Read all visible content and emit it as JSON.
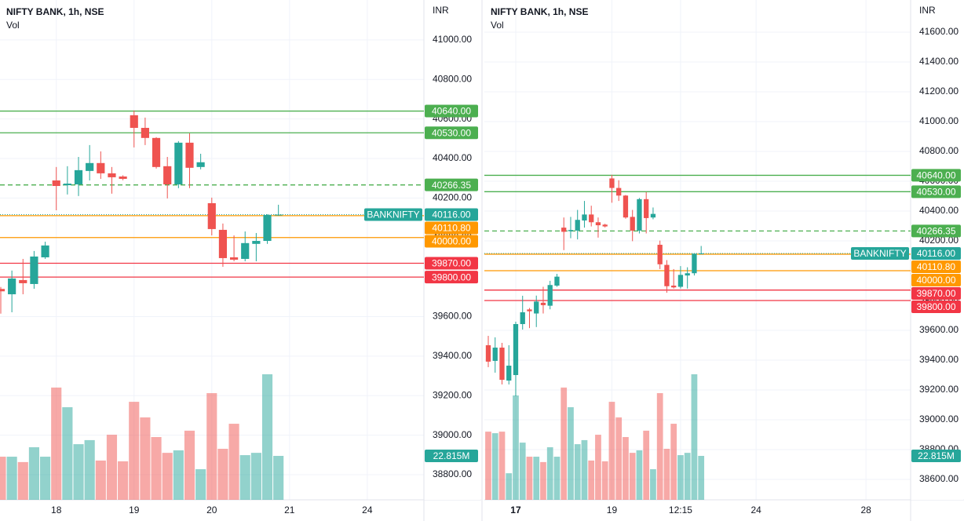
{
  "chart_data": [
    {
      "type": "candlestick",
      "title": "NIFTY BANK, 1h, NSE",
      "subtitle": "Vol",
      "y_axis_label": "INR",
      "candles": {
        "open": [
          39740,
          39713,
          39785,
          39765,
          39900,
          40289,
          40265,
          40269,
          40337,
          40377,
          40325,
          40309,
          40619,
          40555,
          40504,
          40361,
          40269,
          40480,
          40357,
          40174,
          40039,
          39900,
          39892,
          39968,
          39983,
          40114
        ],
        "high": [
          39750,
          39833,
          39892,
          39932,
          39979,
          40357,
          40361,
          40408,
          40468,
          40436,
          40357,
          40315,
          40643,
          40607,
          40508,
          40408,
          40488,
          40527,
          40424,
          40202,
          40071,
          40011,
          40031,
          40023,
          40118,
          40166
        ],
        "low": [
          39615,
          39622,
          39713,
          39741,
          39892,
          40138,
          40218,
          40210,
          40289,
          40297,
          40222,
          40290,
          40456,
          40468,
          40349,
          40198,
          40250,
          40250,
          40345,
          40011,
          39852,
          39880,
          39880,
          39880,
          39968,
          40110
        ],
        "close": [
          39728,
          39793,
          39769,
          39904,
          39960,
          40261,
          40273,
          40341,
          40377,
          40325,
          40305,
          40297,
          40555,
          40504,
          40357,
          40269,
          40480,
          40353,
          40381,
          40043,
          39896,
          39888,
          39972,
          39983,
          40114,
          40116
        ]
      },
      "volume": {
        "values": [
          22.4,
          22.4,
          19.6,
          27.3,
          22.4,
          58.3,
          48.1,
          28.9,
          31.0,
          20.4,
          33.8,
          20.0,
          50.9,
          42.8,
          32.6,
          24.4,
          25.7,
          35.9,
          15.9,
          55.4,
          26.5,
          39.5,
          23.2,
          24.4,
          65.2,
          22.815
        ],
        "last_label": "22.815M"
      },
      "colors": {
        "up": "#26a69a",
        "down": "#ef5350"
      },
      "levels": [
        {
          "value": 40640,
          "label": "40640.00",
          "color": "#4caf50",
          "style": "solid"
        },
        {
          "value": 40530,
          "label": "40530.00",
          "color": "#4caf50",
          "style": "solid"
        },
        {
          "value": 40266.35,
          "color": "#4caf50",
          "style": "dashed"
        },
        {
          "value": 40110.8,
          "label": "40110.80",
          "color": "#ff9800",
          "style": "solid"
        },
        {
          "value": 40000,
          "label": "40000.00",
          "color": "#ff9800",
          "style": "solid"
        },
        {
          "value": 39870,
          "label": "39870.00",
          "color": "#f23645",
          "style": "solid"
        },
        {
          "value": 39800,
          "label": "39800.00",
          "color": "#f23645",
          "style": "solid"
        }
      ],
      "last": {
        "name": "BANKNIFTY",
        "value": 40116,
        "label": "40116.00",
        "color": "#26a69a"
      },
      "xlim": [
        -0.07,
        38.1
      ],
      "xticks": [
        {
          "value": 5,
          "label": "18"
        },
        {
          "value": 12,
          "label": "19"
        },
        {
          "value": 19,
          "label": "20"
        },
        {
          "value": 26,
          "label": "21"
        },
        {
          "value": 33,
          "label": "24"
        }
      ],
      "ylim": [
        38673,
        41202
      ],
      "yticks": [
        {
          "value": 38800,
          "label": "38800.00"
        },
        {
          "value": 39000,
          "label": "39000.00"
        },
        {
          "value": 39200,
          "label": "39200.00"
        },
        {
          "value": 39400,
          "label": "39400.00"
        },
        {
          "value": 39600,
          "label": "39600.00"
        },
        {
          "value": 39800,
          "label": "39800.00"
        },
        {
          "value": 40000,
          "label": "40000.00"
        },
        {
          "value": 40200,
          "label": "40200.00"
        },
        {
          "value": 40400,
          "label": "40400.00"
        },
        {
          "value": 40600,
          "label": "40600.00"
        },
        {
          "value": 40800,
          "label": "40800.00"
        },
        {
          "value": 41000,
          "label": "41000.00"
        }
      ],
      "grid": true
    },
    {
      "type": "candlestick",
      "title": "NIFTY BANK, 1h, NSE",
      "subtitle": "Vol",
      "y_axis_label": "INR",
      "candles": {
        "open": [
          39500,
          39395,
          39484,
          39263,
          39300,
          39642,
          39740,
          39713,
          39785,
          39765,
          39900,
          40289,
          40265,
          40269,
          40337,
          40377,
          40325,
          40309,
          40619,
          40555,
          40504,
          40361,
          40269,
          40480,
          40357,
          40174,
          40039,
          39900,
          39892,
          39968,
          39983,
          40114
        ],
        "high": [
          39563,
          39553,
          39516,
          39500,
          39658,
          39832,
          39750,
          39833,
          39892,
          39932,
          39979,
          40357,
          40361,
          40408,
          40468,
          40436,
          40357,
          40315,
          40643,
          40607,
          40508,
          40408,
          40488,
          40527,
          40424,
          40202,
          40071,
          40011,
          40031,
          40023,
          40118,
          40166
        ],
        "low": [
          39353,
          39316,
          39237,
          39237,
          39158,
          39605,
          39615,
          39622,
          39713,
          39741,
          39892,
          40138,
          40218,
          40210,
          40289,
          40297,
          40222,
          40290,
          40456,
          40468,
          40349,
          40198,
          40250,
          40250,
          40345,
          40011,
          39852,
          39880,
          39880,
          39880,
          39968,
          40110
        ],
        "close": [
          39390,
          39484,
          39268,
          39363,
          39642,
          39721,
          39728,
          39793,
          39769,
          39904,
          39960,
          40261,
          40273,
          40341,
          40377,
          40325,
          40305,
          40297,
          40555,
          40504,
          40357,
          40269,
          40480,
          40353,
          40381,
          40043,
          39896,
          39888,
          39972,
          39983,
          40114,
          40116
        ]
      },
      "volume": {
        "values": [
          35.4,
          34.6,
          35.4,
          13.8,
          54.2,
          29.7,
          22.4,
          22.4,
          19.6,
          27.3,
          22.4,
          58.3,
          48.1,
          28.9,
          31.0,
          20.4,
          33.8,
          20.0,
          50.9,
          42.8,
          32.6,
          24.4,
          25.7,
          35.9,
          15.9,
          55.4,
          26.5,
          39.5,
          23.2,
          24.4,
          65.2,
          22.815
        ],
        "last_label": "22.815M"
      },
      "colors": {
        "up": "#26a69a",
        "down": "#ef5350"
      },
      "levels": [
        {
          "value": 40640,
          "label": "40640.00",
          "color": "#4caf50",
          "style": "solid"
        },
        {
          "value": 40530,
          "label": "40530.00",
          "color": "#4caf50",
          "style": "solid"
        },
        {
          "value": 40266.35,
          "color": "#4caf50",
          "style": "dashed"
        },
        {
          "value": 40110.8,
          "label": "40110.80",
          "color": "#ff9800",
          "style": "solid"
        },
        {
          "value": 40000,
          "label": "40000.00",
          "color": "#ff9800",
          "style": "solid"
        },
        {
          "value": 39870,
          "label": "39870.00",
          "color": "#f23645",
          "style": "solid"
        },
        {
          "value": 39800,
          "label": "39800.00",
          "color": "#f23645",
          "style": "solid"
        }
      ],
      "last": {
        "name": "BANKNIFTY",
        "value": 40116,
        "label": "40116.00",
        "color": "#26a69a"
      },
      "xlim": [
        -0.57,
        61.5
      ],
      "xticks": [
        {
          "value": 4,
          "label": "17"
        },
        {
          "value": 18,
          "label": "19"
        },
        {
          "value": 28,
          "label": "12:15"
        },
        {
          "value": 39,
          "label": "24"
        },
        {
          "value": 55,
          "label": "28"
        }
      ],
      "ylim": [
        38463,
        41816
      ],
      "yticks": [
        {
          "value": 38600,
          "label": "38600.00"
        },
        {
          "value": 38800,
          "label": "38800.00"
        },
        {
          "value": 39000,
          "label": "39000.00"
        },
        {
          "value": 39200,
          "label": "39200.00"
        },
        {
          "value": 39400,
          "label": "39400.00"
        },
        {
          "value": 39600,
          "label": "39600.00"
        },
        {
          "value": 39800,
          "label": "39800.00"
        },
        {
          "value": 40000,
          "label": "40000.00"
        },
        {
          "value": 40200,
          "label": "40200.00"
        },
        {
          "value": 40400,
          "label": "40400.00"
        },
        {
          "value": 40600,
          "label": "40600.00"
        },
        {
          "value": 40800,
          "label": "40800.00"
        },
        {
          "value": 41000,
          "label": "41000.00"
        },
        {
          "value": 41200,
          "label": "41200.00"
        },
        {
          "value": 41400,
          "label": "41400.00"
        },
        {
          "value": 41600,
          "label": "41600.00"
        }
      ],
      "grid": true
    }
  ]
}
